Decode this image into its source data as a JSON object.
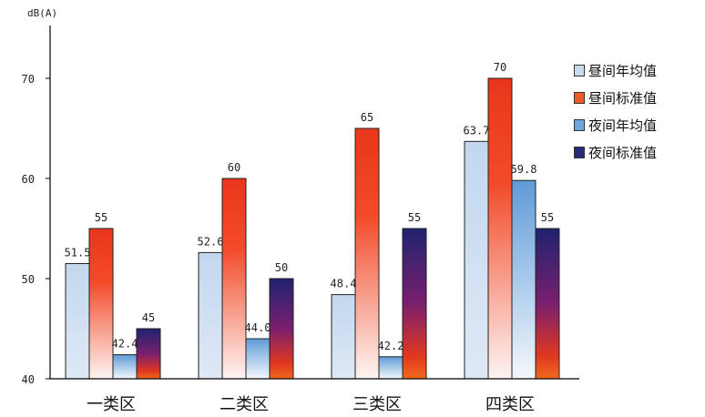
{
  "chart_data": {
    "type": "bar",
    "categories": [
      "一类区",
      "二类区",
      "三类区",
      "四类区"
    ],
    "series": [
      {
        "name": "昼间年均值",
        "values": [
          51.5,
          52.6,
          48.4,
          63.7
        ],
        "labels": [
          "51.5",
          "52.6",
          "48.4",
          "63.7"
        ],
        "color": "#c9dcef"
      },
      {
        "name": "昼间标准值",
        "values": [
          55,
          60,
          65,
          70
        ],
        "labels": [
          "55",
          "60",
          "65",
          "70"
        ],
        "color": "#f05a28"
      },
      {
        "name": "夜间年均值",
        "values": [
          42.4,
          44.0,
          42.2,
          59.8
        ],
        "labels": [
          "42.4",
          "44.0",
          "42.2",
          "59.8"
        ],
        "color": "#6ea6dd"
      },
      {
        "name": "夜间标准值",
        "values": [
          45,
          50,
          55,
          55
        ],
        "labels": [
          "45",
          "50",
          "55",
          "55"
        ],
        "color": "#2b2a78"
      }
    ],
    "ylabel": "dB(A)",
    "ylim": [
      40,
      70
    ],
    "yticks": [
      "40",
      "50",
      "60",
      "70"
    ],
    "grid": false,
    "legend": "right"
  }
}
